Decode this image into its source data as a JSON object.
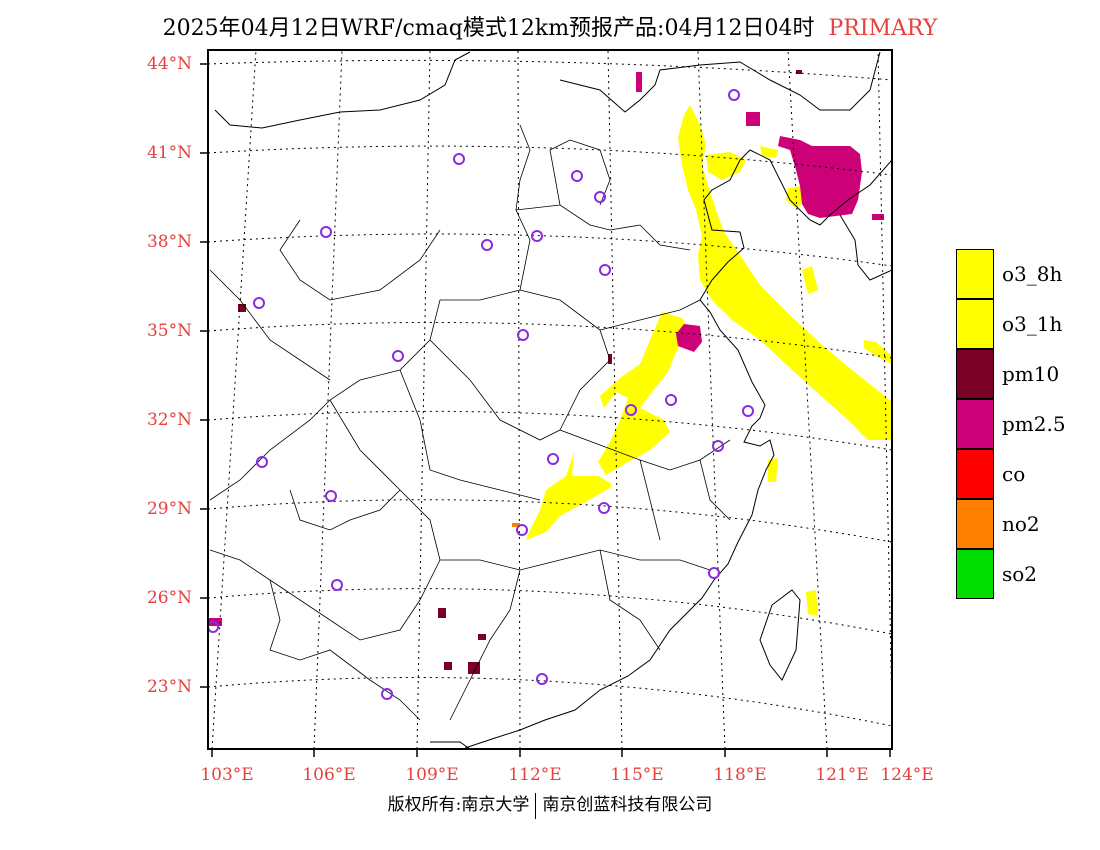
{
  "title": {
    "main": "2025年04月12日WRF/cmaq模式12km预报产品:04月12日04时",
    "tag": "PRIMARY"
  },
  "axes": {
    "lat_labels": [
      "44°N",
      "41°N",
      "38°N",
      "35°N",
      "32°N",
      "29°N",
      "26°N",
      "23°N"
    ],
    "lon_labels": [
      "103°E",
      "106°E",
      "109°E",
      "112°E",
      "115°E",
      "118°E",
      "121°E",
      "124°E"
    ]
  },
  "legend": {
    "items": [
      {
        "label": "o3_8h",
        "color": "#ffff00"
      },
      {
        "label": "o3_1h",
        "color": "#ffff00"
      },
      {
        "label": "pm10",
        "color": "#7a0026"
      },
      {
        "label": "pm2.5",
        "color": "#cc0077"
      },
      {
        "label": "co",
        "color": "#ff0000"
      },
      {
        "label": "no2",
        "color": "#ff8000"
      },
      {
        "label": "so2",
        "color": "#00dd00"
      }
    ]
  },
  "colors": {
    "axis_label": "#e8403c",
    "station_marker": "#8a2be2",
    "ozone": "#ffff00",
    "pm10": "#7a0026",
    "pm25": "#cc0077",
    "no2": "#ff8000"
  },
  "footer": {
    "left": "版权所有:南京大学",
    "right": "南京创蓝科技有限公司"
  }
}
